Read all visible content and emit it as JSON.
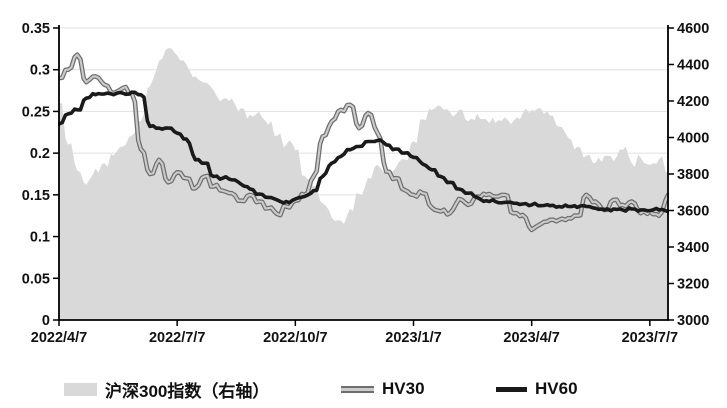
{
  "chart_data": {
    "type": "area+line",
    "title": "",
    "weeks": 68,
    "x_tick_labels": [
      "2022/4/7",
      "2022/7/7",
      "2022/10/7",
      "2023/1/7",
      "2023/4/7",
      "2023/7/7"
    ],
    "x_tick_week_indices": [
      0,
      13,
      26,
      39,
      52,
      65
    ],
    "left_axis": {
      "min": 0,
      "max": 0.35,
      "tick_labels": [
        "0",
        "0.05",
        "0.1",
        "0.15",
        "0.2",
        "0.25",
        "0.3",
        "0.35"
      ]
    },
    "right_axis": {
      "min": 3000,
      "max": 4600,
      "tick_labels": [
        "3000",
        "3200",
        "3400",
        "3600",
        "3800",
        "4000",
        "4200",
        "4400",
        "4600"
      ]
    },
    "legend_position": "bottom",
    "grid": "horizontal",
    "colors": {
      "area": "#d9d9d9",
      "hv30_outer": "#6e6e6e",
      "hv30_inner": "#cbcbcb",
      "hv60": "#1a1a1a",
      "gridline": "#e0e0e0",
      "axis": "#000000",
      "text": "#111111",
      "background": "#ffffff"
    },
    "series": [
      {
        "name": "沪深300指数（右轴）",
        "type": "area",
        "axis": "right",
        "values": [
          4190,
          3960,
          3820,
          3740,
          3830,
          3860,
          3900,
          3950,
          4010,
          4090,
          4280,
          4420,
          4490,
          4450,
          4400,
          4335,
          4300,
          4260,
          4210,
          4215,
          4160,
          4125,
          4140,
          4070,
          4010,
          3960,
          3930,
          3790,
          3730,
          3640,
          3560,
          3545,
          3610,
          3690,
          3780,
          3850,
          3820,
          3830,
          3880,
          3980,
          4100,
          4150,
          4170,
          4140,
          4150,
          4090,
          4130,
          4100,
          4080,
          4110,
          4090,
          4130,
          4150,
          4160,
          4120,
          4060,
          4000,
          3950,
          3900,
          3860,
          3900,
          3870,
          3930,
          3860,
          3890,
          3850,
          3880,
          3800
        ]
      },
      {
        "name": "HV30",
        "type": "line",
        "axis": "left",
        "values": [
          0.29,
          0.3,
          0.318,
          0.285,
          0.292,
          0.282,
          0.272,
          0.278,
          0.272,
          0.205,
          0.175,
          0.192,
          0.165,
          0.177,
          0.17,
          0.158,
          0.172,
          0.16,
          0.155,
          0.152,
          0.143,
          0.15,
          0.142,
          0.134,
          0.127,
          0.136,
          0.143,
          0.15,
          0.172,
          0.22,
          0.238,
          0.252,
          0.258,
          0.23,
          0.248,
          0.225,
          0.178,
          0.17,
          0.156,
          0.15,
          0.152,
          0.135,
          0.13,
          0.128,
          0.145,
          0.138,
          0.148,
          0.15,
          0.148,
          0.15,
          0.128,
          0.126,
          0.108,
          0.115,
          0.12,
          0.12,
          0.122,
          0.125,
          0.15,
          0.142,
          0.132,
          0.144,
          0.138,
          0.142,
          0.128,
          0.13,
          0.125,
          0.15
        ]
      },
      {
        "name": "HV60",
        "type": "line",
        "axis": "left",
        "values": [
          0.235,
          0.247,
          0.252,
          0.266,
          0.27,
          0.271,
          0.27,
          0.272,
          0.273,
          0.27,
          0.232,
          0.23,
          0.23,
          0.224,
          0.217,
          0.192,
          0.188,
          0.172,
          0.17,
          0.168,
          0.163,
          0.157,
          0.151,
          0.147,
          0.144,
          0.142,
          0.145,
          0.148,
          0.155,
          0.172,
          0.188,
          0.196,
          0.204,
          0.208,
          0.214,
          0.215,
          0.21,
          0.205,
          0.2,
          0.195,
          0.187,
          0.18,
          0.172,
          0.165,
          0.157,
          0.152,
          0.147,
          0.143,
          0.142,
          0.141,
          0.14,
          0.139,
          0.138,
          0.137,
          0.137,
          0.136,
          0.136,
          0.135,
          0.136,
          0.134,
          0.132,
          0.133,
          0.132,
          0.133,
          0.132,
          0.131,
          0.132,
          0.13
        ]
      }
    ]
  }
}
